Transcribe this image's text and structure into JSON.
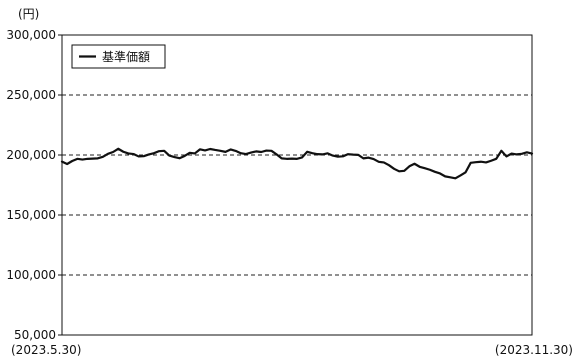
{
  "chart_data": {
    "type": "line",
    "unit_label": "(円)",
    "start_label": "(2023.5.30)",
    "end_label": "(2023.11.30)",
    "ylim": [
      50000,
      300000
    ],
    "yticks": [
      50000,
      100000,
      150000,
      200000,
      250000,
      300000
    ],
    "ytick_labels": [
      "50,000",
      "100,000",
      "150,000",
      "200,000",
      "250,000",
      "300,000"
    ],
    "grid": "horizontal-dashed",
    "legend_position": "top-left",
    "series": [
      {
        "name": "基準価額",
        "color": "#111111",
        "values": [
          194500,
          192500,
          195000,
          196800,
          196200,
          196800,
          197000,
          197200,
          198500,
          201000,
          202500,
          205200,
          202700,
          201300,
          200800,
          198800,
          199000,
          200500,
          201500,
          203200,
          203500,
          199500,
          198300,
          197300,
          199200,
          201800,
          201300,
          204700,
          203800,
          205000,
          204200,
          203500,
          202600,
          204600,
          203400,
          201500,
          200800,
          202000,
          203000,
          202500,
          203700,
          203500,
          200500,
          197200,
          196800,
          197000,
          196800,
          198000,
          202700,
          201500,
          200700,
          200500,
          201400,
          199500,
          198600,
          198900,
          200700,
          200300,
          200100,
          197200,
          197800,
          196600,
          194300,
          193800,
          191500,
          188500,
          186400,
          186800,
          190600,
          192700,
          190200,
          189000,
          187700,
          186000,
          184600,
          182200,
          181400,
          180600,
          183000,
          185600,
          193500,
          194000,
          194400,
          193800,
          195200,
          196800,
          203500,
          198800,
          201200,
          200500,
          201000,
          202200,
          201200
        ]
      }
    ]
  }
}
